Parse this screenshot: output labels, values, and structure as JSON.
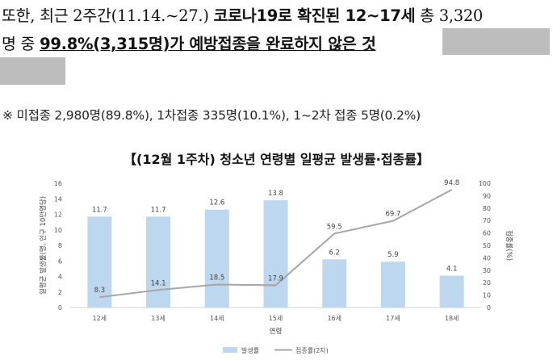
{
  "text": {
    "line1_pre": "또한, 최근 2주간(11.14.~27.) ",
    "line1_bold": "코로나19로 확진된 12~17세",
    "line1_post": " 총 3,320",
    "line2_pre": "명 중 ",
    "line2_underline": "99.8%(3,315명)가 예방접종을 완료하지 않은 것",
    "note": "※ 미접종 2,980명(89.8%), 1차접종 335명(10.1%), 1~2차 접종 5명(0.2%)"
  },
  "chart_data": {
    "type": "bar",
    "title": "【(12월 1주차) 청소년 연령별 일평균 발생률·접종률】",
    "categories": [
      "12세",
      "13세",
      "14세",
      "15세",
      "16세",
      "17세",
      "18세"
    ],
    "series": [
      {
        "name": "발생률",
        "type": "bar",
        "axis": "left",
        "values": [
          11.7,
          11.7,
          12.6,
          13.8,
          6.2,
          5.9,
          4.1
        ]
      },
      {
        "name": "접종률(2차)",
        "type": "line",
        "axis": "right",
        "values": [
          8.3,
          14.1,
          18.5,
          17.9,
          59.5,
          69.7,
          94.8
        ]
      }
    ],
    "xlabel": "연령",
    "ylabel_left": "일평균 발생률(명, 인구 10만명당)",
    "ylabel_right": "접종률(%)",
    "ylim_left": [
      0,
      16
    ],
    "ylim_right": [
      0,
      100
    ],
    "yticks_left": [
      "0",
      "2",
      "4",
      "6",
      "8",
      "10",
      "12",
      "14",
      "16"
    ],
    "yticks_right": [
      "0",
      "10",
      "20",
      "30",
      "40",
      "50",
      "60",
      "70",
      "80",
      "90",
      "100"
    ],
    "legend_position": "bottom",
    "colors": {
      "bar": "#bdd7ee",
      "line": "#a6a6a6"
    }
  }
}
